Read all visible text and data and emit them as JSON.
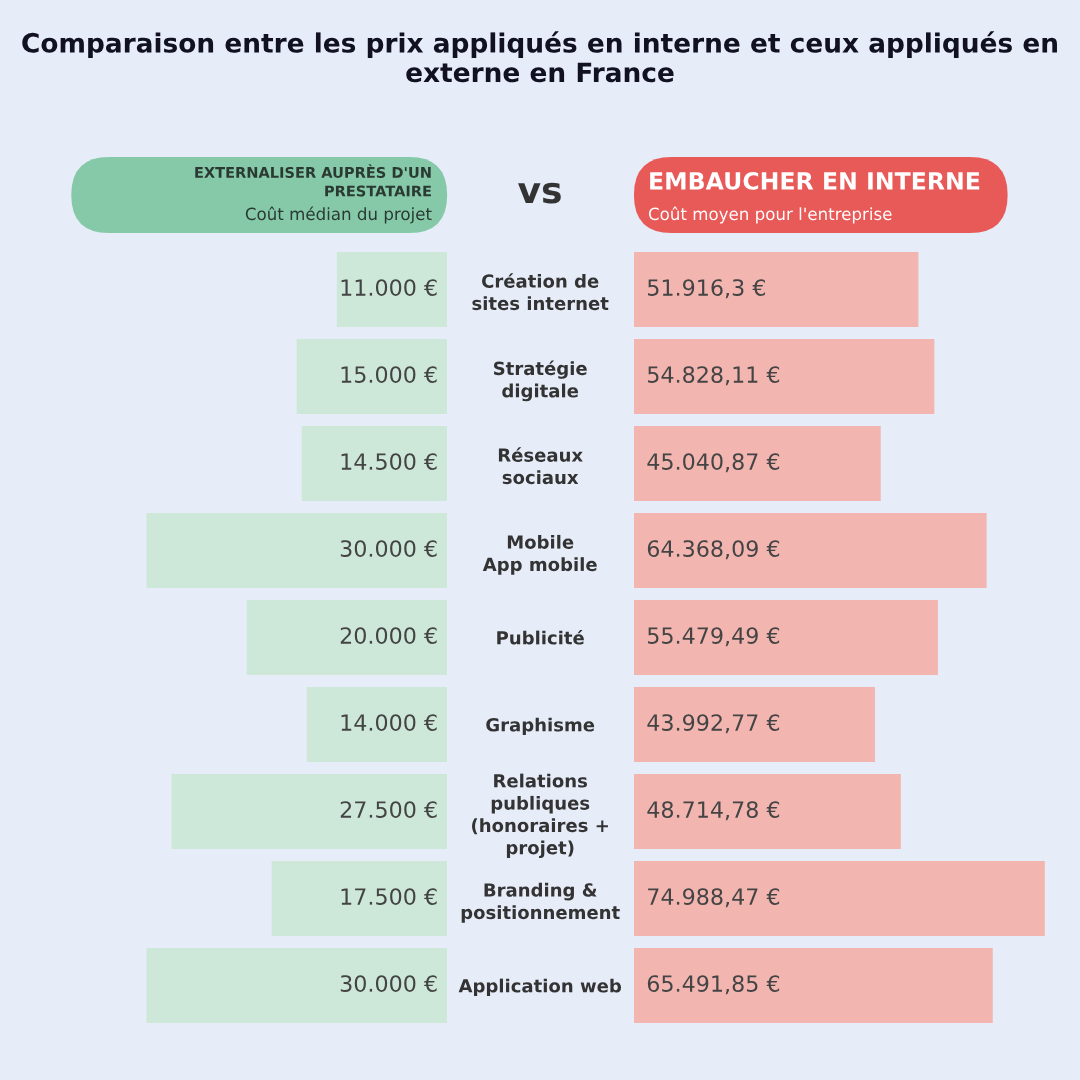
{
  "chart_data": [
    {
      "type": "bar",
      "orientation": "horizontal",
      "title": "Comparaison entre les prix appliqués en interne et ceux appliqués en externe en France",
      "categories": [
        "Création de\nsites internet",
        "Stratégie\ndigitale",
        "Réseaux\nsociaux",
        "Mobile\nApp mobile",
        "Publicité",
        "Graphisme",
        "Relations\npubliques\n(honoraires +\nprojet)",
        "Branding &\npositionnement",
        "Application web"
      ],
      "series": [
        {
          "name": "EXTERNALISER AUPRÈS D'UN\nPRESTATAIRE",
          "color": "#cde8d9",
          "values": [
            11000,
            15000,
            14500,
            30000,
            20000,
            14000,
            27500,
            17500,
            30000
          ],
          "value_labels": [
            "11.000 €",
            "15.000 €",
            "14.500 €",
            "30.000 €",
            "20.000 €",
            "14.000 €",
            "27.500 €",
            "17.500 €",
            "30.000 €"
          ]
        }
      ],
      "annotations": [
        "Coût médian du projet",
        "vs"
      ]
    },
    {
      "type": "bar",
      "orientation": "horizontal",
      "categories": [
        null,
        null,
        null,
        null,
        null,
        null,
        null,
        null,
        null
      ],
      "series": [
        {
          "name": "EMBAUCHER EN INTERNE",
          "color": "#f2b5b0",
          "values": [
            51916.3,
            54828.11,
            45040.87,
            64368.09,
            55479.49,
            43992.77,
            48714.78,
            74988.47,
            65491.85
          ],
          "value_labels": [
            "51.916,3 €",
            "54.828,11 €",
            "45.040,87 €",
            "64.368,09 €",
            "55.479,49 €",
            "43.992,77 €",
            "48.714,78 €",
            "74.988,47 €",
            "65.491,85 €"
          ]
        }
      ],
      "annotations": [
        "Coût moyen pour l'entreprise"
      ]
    }
  ]
}
